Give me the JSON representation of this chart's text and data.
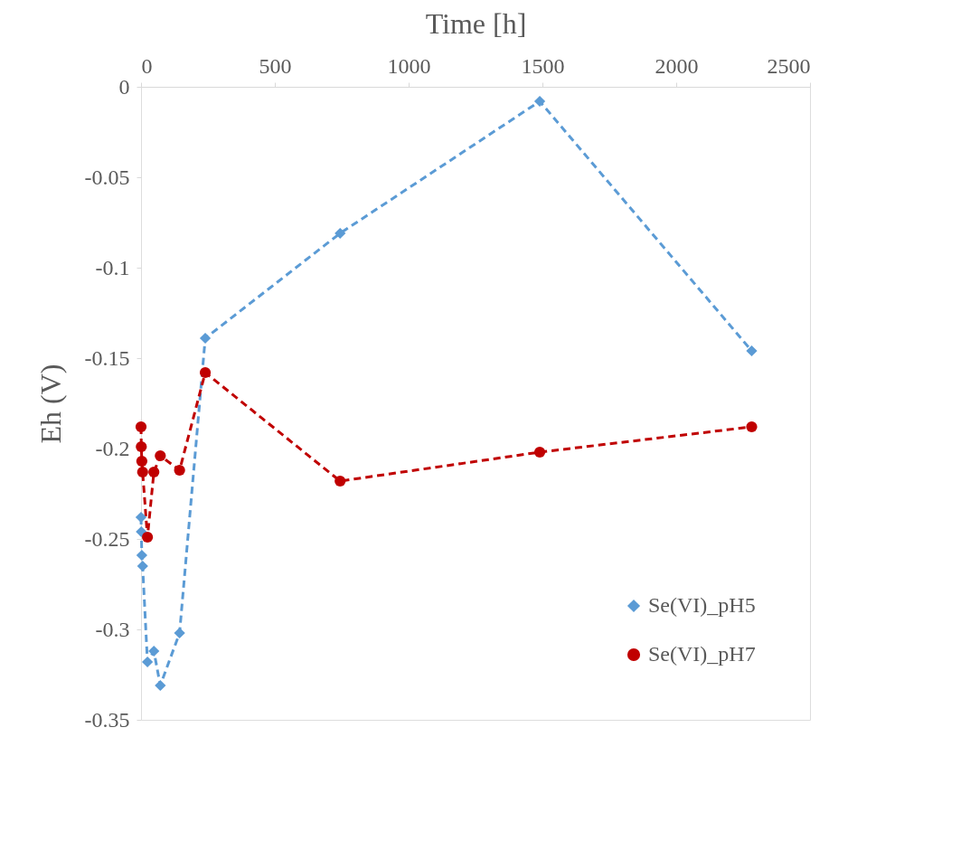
{
  "chart_data": {
    "type": "line",
    "xlabel": "Time [h]",
    "ylabel": "Eh (V)",
    "xlim": [
      0,
      2500
    ],
    "xticks": [
      0,
      500,
      1000,
      1500,
      2000,
      2500
    ],
    "ylim": [
      -0.35,
      0
    ],
    "yticks": [
      -0.35,
      -0.3,
      -0.25,
      -0.2,
      -0.15,
      -0.1,
      -0.05,
      0
    ],
    "grid": false,
    "legend": "bottom right",
    "line_style": "dashed",
    "series": [
      {
        "name": "Se(VI)_pH5",
        "color": "#5b9bd5",
        "marker": "diamond",
        "x": [
          0,
          1,
          3,
          6,
          24,
          48,
          72,
          144,
          240,
          744,
          1490,
          2282
        ],
        "values": [
          -0.238,
          -0.246,
          -0.259,
          -0.265,
          -0.318,
          -0.312,
          -0.331,
          -0.302,
          -0.139,
          -0.081,
          -0.008,
          -0.146
        ]
      },
      {
        "name": "Se(VI)_pH7",
        "color": "#c00000",
        "marker": "circle",
        "x": [
          0,
          1,
          3,
          6,
          24,
          48,
          72,
          144,
          240,
          744,
          1490,
          2282
        ],
        "values": [
          -0.188,
          -0.199,
          -0.207,
          -0.213,
          -0.249,
          -0.213,
          -0.204,
          -0.212,
          -0.158,
          -0.218,
          -0.202,
          -0.188
        ]
      }
    ]
  }
}
